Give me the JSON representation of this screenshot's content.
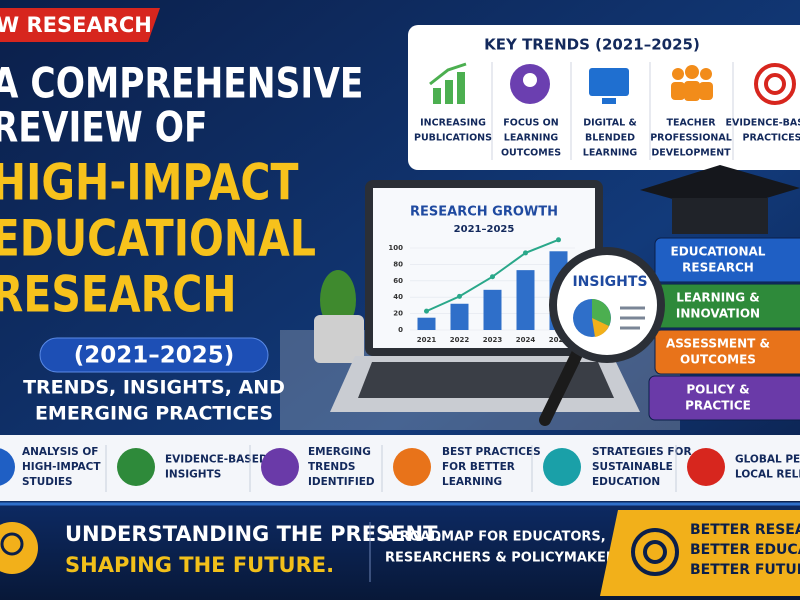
{
  "tag": "W RESEARCH",
  "title_lines": [
    "A COMPREHENSIVE",
    "REVIEW OF",
    "HIGH-IMPACT",
    "EDUCATIONAL",
    "RESEARCH"
  ],
  "years": "(2021–2025)",
  "subtitle_lines": [
    "TRENDS, INSIGHTS, AND",
    "EMERGING PRACTICES"
  ],
  "key_trends": {
    "title": "KEY TRENDS (2021–2025)",
    "items": [
      {
        "lines": [
          "INCREASING",
          "PUBLICATIONS"
        ]
      },
      {
        "lines": [
          "FOCUS ON",
          "LEARNING",
          "OUTCOMES"
        ]
      },
      {
        "lines": [
          "DIGITAL &",
          "BLENDED",
          "LEARNING"
        ]
      },
      {
        "lines": [
          "TEACHER",
          "PROFESSIONAL",
          "DEVELOPMENT"
        ]
      },
      {
        "lines": [
          "EVIDENCE-BASED",
          "PRACTICES"
        ]
      }
    ]
  },
  "chart_data": {
    "type": "bar",
    "title": "RESEARCH GROWTH",
    "subtitle": "2021–2025",
    "categories": [
      "2021",
      "2022",
      "2023",
      "2024",
      "2025"
    ],
    "values": [
      15,
      32,
      49,
      73,
      96
    ],
    "color": "#2f6fc9",
    "trend": [
      23,
      41,
      65,
      94,
      110
    ],
    "trend_color": "#2aa88a",
    "ylim": [
      0,
      100
    ],
    "yticks": [
      0,
      20,
      40,
      60,
      80,
      100
    ]
  },
  "insights": "INSIGHTS",
  "books": [
    {
      "lines": [
        "EDUCATIONAL",
        "RESEARCH"
      ]
    },
    {
      "lines": [
        "LEARNING &",
        "INNOVATION"
      ]
    },
    {
      "lines": [
        "ASSESSMENT &",
        "OUTCOMES"
      ]
    },
    {
      "lines": [
        "POLICY &",
        "PRACTICE"
      ]
    }
  ],
  "features": [
    {
      "lines": [
        "ANALYSIS OF",
        "HIGH-IMPACT",
        "STUDIES"
      ]
    },
    {
      "lines": [
        "EVIDENCE-BASED",
        "INSIGHTS"
      ]
    },
    {
      "lines": [
        "EMERGING",
        "TRENDS",
        "IDENTIFIED"
      ]
    },
    {
      "lines": [
        "BEST PRACTICES",
        "FOR BETTER",
        "LEARNING"
      ]
    },
    {
      "lines": [
        "STRATEGIES FOR",
        "SUSTAINABLE",
        "EDUCATION"
      ]
    },
    {
      "lines": [
        "GLOBAL PERSPECTIVES,",
        "LOCAL RELEVANCE"
      ]
    }
  ],
  "footer": {
    "headline": [
      "UNDERSTANDING THE PRESENT.",
      "SHAPING THE FUTURE."
    ],
    "roadmap": [
      "A ROADMAP FOR EDUCATORS,",
      "RESEARCHERS & POLICYMAKERS"
    ],
    "motto": [
      "BETTER RESEARCH.",
      "BETTER EDUCATION.",
      "BETTER FUTURE."
    ]
  }
}
